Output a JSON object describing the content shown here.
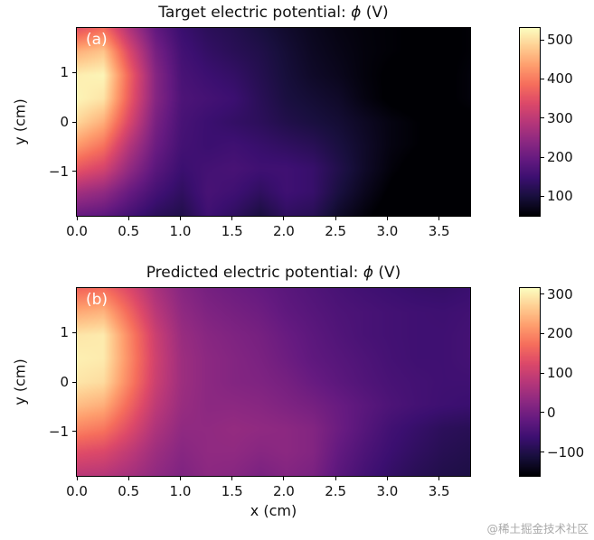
{
  "figure": {
    "watermark": "@稀土掘金技术社区"
  },
  "chart_data": [
    {
      "type": "heatmap",
      "panel_label": "(a)",
      "title": "Target electric potential: ϕ (V)",
      "title_parts": {
        "prefix": "Target electric potential: ",
        "phi": "ϕ",
        "suffix": " (V)"
      },
      "xlabel": "",
      "ylabel": "y (cm)",
      "colormap": "magma",
      "x_range": [
        0,
        3.8
      ],
      "y_range": [
        -1.9,
        1.9
      ],
      "x_tick_values": [
        0,
        0.5,
        1,
        1.5,
        2,
        2.5,
        3,
        3.5
      ],
      "x_tick_labels": [
        "0.0",
        "0.5",
        "1.0",
        "1.5",
        "2.0",
        "2.5",
        "3.0",
        "3.5"
      ],
      "y_tick_values": [
        1,
        0,
        -1
      ],
      "y_tick_labels": [
        "1",
        "0",
        "−1"
      ],
      "colorbar": {
        "vmin": 50,
        "vmax": 530,
        "tick_values": [
          500,
          400,
          300,
          200,
          100
        ],
        "tick_labels": [
          "500",
          "400",
          "300",
          "200",
          "100"
        ]
      },
      "grid_x": [
        0,
        0.25,
        0.5,
        0.75,
        1.0,
        1.25,
        1.5,
        1.75,
        2.0,
        2.25,
        2.5,
        2.75,
        3.0,
        3.25,
        3.5,
        3.75
      ],
      "grid_y": [
        1.6,
        1.2,
        0.8,
        0.4,
        0.0,
        -0.4,
        -0.8,
        -1.2,
        -1.6
      ],
      "values": [
        [
          350,
          385,
          280,
          190,
          145,
          125,
          115,
          100,
          85,
          72,
          62,
          56,
          52,
          48,
          47,
          52
        ],
        [
          455,
          475,
          335,
          215,
          155,
          135,
          122,
          110,
          92,
          76,
          66,
          57,
          52,
          48,
          47,
          52
        ],
        [
          515,
          522,
          372,
          232,
          162,
          147,
          136,
          116,
          96,
          81,
          71,
          57,
          47,
          42,
          46,
          56
        ],
        [
          522,
          505,
          362,
          232,
          167,
          157,
          147,
          122,
          101,
          91,
          81,
          61,
          46,
          41,
          46,
          56
        ],
        [
          492,
          452,
          332,
          217,
          161,
          146,
          136,
          126,
          111,
          101,
          91,
          76,
          61,
          51,
          46,
          46
        ],
        [
          432,
          392,
          287,
          202,
          156,
          146,
          151,
          141,
          131,
          121,
          101,
          81,
          61,
          51,
          41,
          36
        ],
        [
          357,
          327,
          247,
          182,
          146,
          156,
          161,
          151,
          151,
          141,
          111,
          81,
          56,
          41,
          32,
          32
        ],
        [
          267,
          247,
          197,
          157,
          131,
          161,
          151,
          131,
          151,
          141,
          101,
          71,
          46,
          36,
          27,
          27
        ],
        [
          197,
          187,
          157,
          127,
          111,
          151,
          131,
          101,
          131,
          121,
          81,
          56,
          36,
          27,
          22,
          22
        ]
      ]
    },
    {
      "type": "heatmap",
      "panel_label": "(b)",
      "title": "Predicted electric potential: ϕ (V)",
      "title_parts": {
        "prefix": "Predicted electric potential: ",
        "phi": "ϕ",
        "suffix": " (V)"
      },
      "xlabel": "x (cm)",
      "ylabel": "y (cm)",
      "colormap": "magma",
      "x_range": [
        0,
        3.8
      ],
      "y_range": [
        -1.9,
        1.9
      ],
      "x_tick_values": [
        0,
        0.5,
        1,
        1.5,
        2,
        2.5,
        3,
        3.5
      ],
      "x_tick_labels": [
        "0.0",
        "0.5",
        "1.0",
        "1.5",
        "2.0",
        "2.5",
        "3.0",
        "3.5"
      ],
      "y_tick_values": [
        1,
        0,
        -1
      ],
      "y_tick_labels": [
        "1",
        "0",
        "−1"
      ],
      "colorbar": {
        "vmin": -160,
        "vmax": 315,
        "tick_values": [
          300,
          200,
          100,
          0,
          -100
        ],
        "tick_labels": [
          "300",
          "200",
          "100",
          "0",
          "−100"
        ]
      },
      "grid_x": [
        0,
        0.25,
        0.5,
        0.75,
        1.0,
        1.25,
        1.5,
        1.75,
        2.0,
        2.25,
        2.5,
        2.75,
        3.0,
        3.25,
        3.5,
        3.75
      ],
      "grid_y": [
        1.6,
        1.2,
        0.8,
        0.4,
        0.0,
        -0.4,
        -0.8,
        -1.2,
        -1.6
      ],
      "values": [
        [
          162,
          172,
          122,
          62,
          22,
          2,
          -8,
          -18,
          -30,
          -40,
          -50,
          -58,
          -64,
          -70,
          -72,
          -66
        ],
        [
          232,
          242,
          162,
          82,
          32,
          12,
          2,
          -8,
          -24,
          -34,
          -44,
          -50,
          -56,
          -60,
          -62,
          -58
        ],
        [
          292,
          297,
          197,
          102,
          42,
          22,
          12,
          2,
          -14,
          -28,
          -40,
          -50,
          -56,
          -60,
          -60,
          -55
        ],
        [
          302,
          297,
          202,
          107,
          47,
          27,
          17,
          7,
          -8,
          -24,
          -34,
          -44,
          -54,
          -60,
          -60,
          -55
        ],
        [
          292,
          282,
          192,
          102,
          47,
          27,
          17,
          12,
          2,
          -14,
          -28,
          -40,
          -50,
          -56,
          -60,
          -60
        ],
        [
          252,
          237,
          162,
          87,
          42,
          27,
          27,
          22,
          12,
          2,
          -14,
          -30,
          -45,
          -55,
          -62,
          -66
        ],
        [
          197,
          182,
          127,
          67,
          32,
          32,
          37,
          32,
          27,
          17,
          -10,
          -35,
          -58,
          -72,
          -85,
          -90
        ],
        [
          132,
          122,
          87,
          47,
          22,
          32,
          32,
          22,
          27,
          17,
          -20,
          -45,
          -65,
          -80,
          -92,
          -98
        ],
        [
          82,
          77,
          57,
          32,
          12,
          27,
          22,
          7,
          17,
          7,
          -30,
          -55,
          -75,
          -90,
          -100,
          -105
        ]
      ]
    }
  ]
}
